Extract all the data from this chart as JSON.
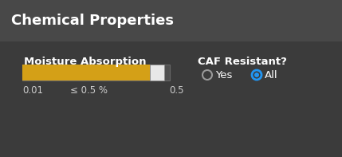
{
  "title": "Chemical Properties",
  "bg_color": "#3b3b3b",
  "header_bg_color": "#484848",
  "title_color": "#ffffff",
  "title_fontsize": 13,
  "slider_label": "Moisture Absorption",
  "slider_label_color": "#ffffff",
  "slider_label_fontsize": 9.5,
  "slider_fill_color": "#d4a017",
  "slider_track_color": "#505050",
  "slider_handle_color": "#e8e8e8",
  "slider_min_label": "0.01",
  "slider_max_label": "0.5",
  "slider_value_label": "≤ 0.5 %",
  "slider_tick_color": "#cccccc",
  "slider_tick_fontsize": 8.5,
  "caf_label": "CAF Resistant?",
  "caf_label_color": "#ffffff",
  "caf_label_fontsize": 9.5,
  "radio_yes_label": "Yes",
  "radio_all_label": "All",
  "radio_label_color": "#ffffff",
  "radio_fontsize": 9.5,
  "radio_selected_color": "#2196f3",
  "radio_border_color": "#999999"
}
